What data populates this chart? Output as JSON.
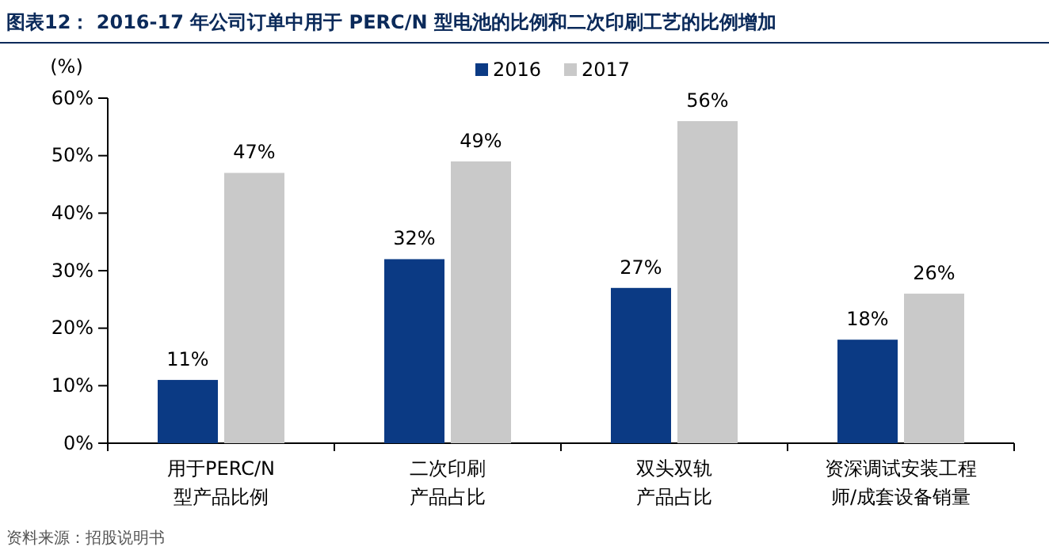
{
  "chart_data": {
    "type": "bar",
    "title": "图表12：  2016-17 年公司订单中用于 PERC/N 型电池的比例和二次印刷工艺的比例增加",
    "ylabel": "(%)",
    "categories": [
      "用于PERC/N型产品比例",
      "二次印刷产品占比",
      "双头双轨产品占比",
      "资深调试安装工程师/成套设备销量"
    ],
    "series": [
      {
        "name": "2016",
        "color": "#0b3a84",
        "values": [
          11,
          32,
          27,
          18
        ],
        "value_labels": [
          "11%",
          "32%",
          "27%",
          "18%"
        ]
      },
      {
        "name": "2017",
        "color": "#c9c9c9",
        "values": [
          47,
          49,
          56,
          26
        ],
        "value_labels": [
          "47%",
          "49%",
          "56%",
          "26%"
        ]
      }
    ],
    "ylim": [
      0,
      60
    ],
    "yticks": [
      {
        "value": 0,
        "label": "0%"
      },
      {
        "value": 10,
        "label": "10%"
      },
      {
        "value": 20,
        "label": "20%"
      },
      {
        "value": 30,
        "label": "30%"
      },
      {
        "value": 40,
        "label": "40%"
      },
      {
        "value": 50,
        "label": "50%"
      },
      {
        "value": 60,
        "label": "60%"
      }
    ],
    "grid": false,
    "legend": "top",
    "annotations": [
      "资料来源：招股说明书"
    ]
  }
}
